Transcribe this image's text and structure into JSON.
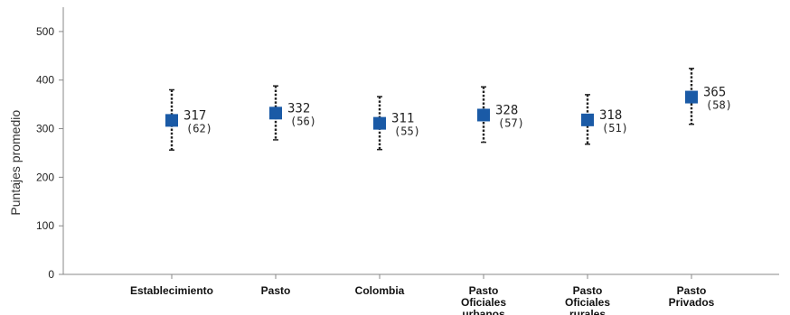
{
  "chart_data": {
    "type": "scatter",
    "title": "",
    "xlabel": "",
    "ylabel": "Puntajes promedio",
    "ylim": [
      0,
      550
    ],
    "yticks": [
      0,
      100,
      200,
      300,
      400,
      500
    ],
    "grid": false,
    "legend": "none",
    "marker_color": "#1a5aa6",
    "errorbar_color": "#222222",
    "categories": [
      [
        "Establecimiento"
      ],
      [
        "Pasto"
      ],
      [
        "Colombia"
      ],
      [
        "Pasto",
        "Oficiales",
        "urbanos"
      ],
      [
        "Pasto",
        "Oficiales",
        "rurales"
      ],
      [
        "Pasto",
        "Privados"
      ]
    ],
    "values": [
      317,
      332,
      311,
      328,
      318,
      365
    ],
    "value_labels": [
      "317",
      "332",
      "311",
      "328",
      "318",
      "365"
    ],
    "sd_labels": [
      "(62)",
      "(56)",
      "(55)",
      "(57)",
      "(51)",
      "(58)"
    ],
    "error_low": [
      256,
      277,
      257,
      272,
      268,
      309
    ],
    "error_high": [
      380,
      388,
      366,
      386,
      370,
      424
    ]
  }
}
